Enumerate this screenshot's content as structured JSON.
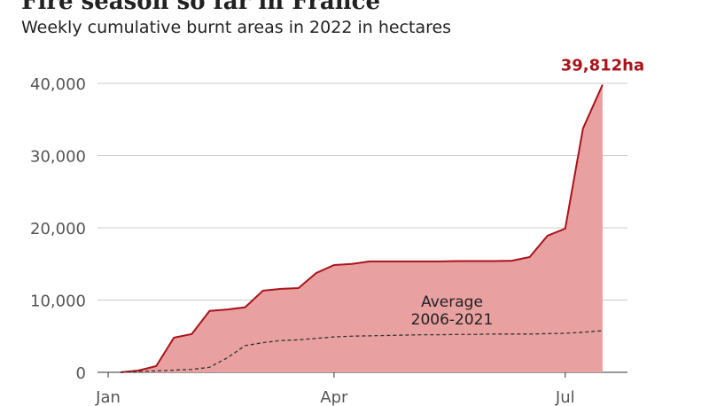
{
  "chart_data": {
    "type": "area",
    "title": "Fire season so far in France",
    "subtitle": "Weekly cumulative burnt areas in 2022 in hectares",
    "x": [
      1,
      2,
      3,
      4,
      5,
      6,
      7,
      8,
      9,
      10,
      11,
      12,
      13,
      14,
      15,
      16,
      17,
      18,
      19,
      20,
      21,
      22,
      23,
      24,
      25,
      26,
      27,
      28.1
    ],
    "xlim": [
      -0.3,
      29.5
    ],
    "xticks": [
      {
        "value": 0.3,
        "label": "Jan"
      },
      {
        "value": 13,
        "label": "Apr"
      },
      {
        "value": 26,
        "label": "Jul"
      }
    ],
    "ylim": [
      0,
      40000
    ],
    "yticks": [
      0,
      {
        "value": 10000,
        "label": "10,000"
      },
      {
        "value": 20000,
        "label": "20,000"
      },
      {
        "value": 30000,
        "label": "30,000"
      },
      {
        "value": 40000,
        "label": "40,000"
      }
    ],
    "grid": true,
    "series": [
      {
        "color": "#a8141a",
        "fill": "#e8a0a0",
        "values": [
          0,
          250,
          860,
          4800,
          5300,
          8500,
          8700,
          9000,
          11300,
          11550,
          11650,
          13750,
          14850,
          15000,
          15350,
          15350,
          15350,
          15350,
          15350,
          15400,
          15400,
          15400,
          15450,
          15950,
          18900,
          19900,
          33750,
          39812
        ],
        "value_labels": [
          null,
          null,
          null,
          null,
          null,
          null,
          null,
          null,
          null,
          null,
          null,
          null,
          null,
          null,
          null,
          null,
          null,
          null,
          null,
          null,
          null,
          null,
          null,
          null,
          null,
          null,
          null,
          "39,812ha"
        ]
      },
      {
        "name": "Average 2006-2021",
        "color": "#333333",
        "dashed": true,
        "values": [
          0,
          100,
          200,
          300,
          400,
          700,
          2000,
          3700,
          4100,
          4400,
          4500,
          4700,
          4900,
          5000,
          5050,
          5100,
          5150,
          5200,
          5200,
          5250,
          5250,
          5300,
          5300,
          5300,
          5350,
          5400,
          5550,
          5750
        ]
      }
    ]
  }
}
